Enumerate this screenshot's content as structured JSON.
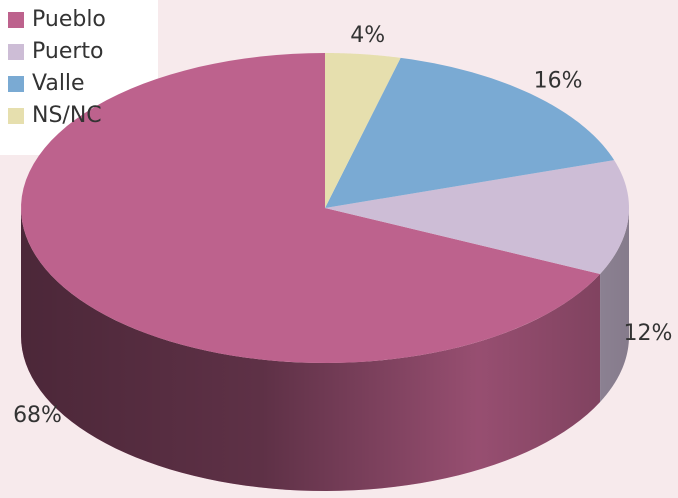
{
  "chart_data": {
    "type": "pie3d",
    "series": [
      {
        "name": "Pueblo",
        "color": "#bd628d",
        "values": [
          68
        ],
        "value_labels": [
          "68%"
        ]
      },
      {
        "name": "Puerto",
        "color": "#cdbdd6",
        "values": [
          12
        ],
        "value_labels": [
          "12%"
        ]
      },
      {
        "name": "Valle",
        "color": "#7aaad3",
        "values": [
          16
        ],
        "value_labels": [
          "16%"
        ]
      },
      {
        "name": "NS/NC",
        "color": "#e6dfae",
        "values": [
          4
        ],
        "value_labels": [
          "4%"
        ]
      }
    ],
    "legend": "top-left"
  }
}
